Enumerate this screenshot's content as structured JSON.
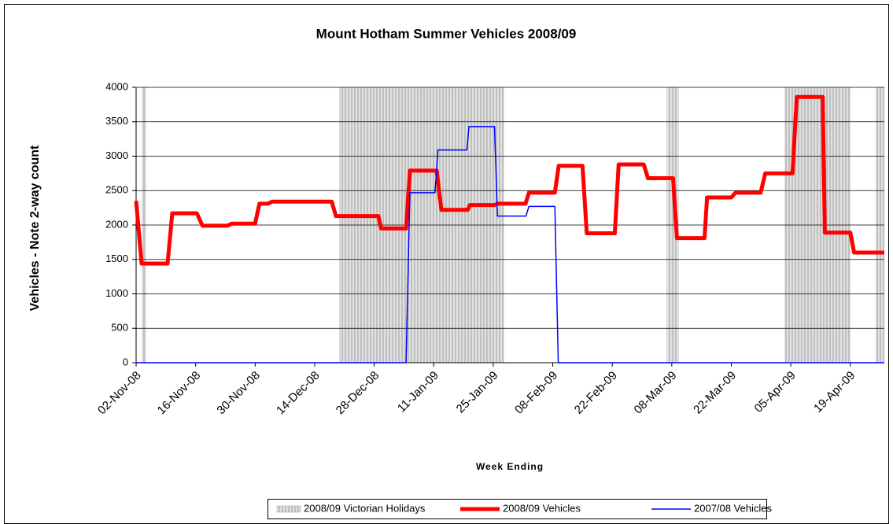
{
  "chart_data": {
    "type": "line",
    "title": "Mount Hotham Summer Vehicles 2008/09",
    "x_label": "Week Ending",
    "y_label": "Vehicles - Note 2-way count",
    "xlim": [
      0,
      176
    ],
    "xticks": [
      {
        "value": 0,
        "label": "02-Nov-08"
      },
      {
        "value": 14,
        "label": "16-Nov-08"
      },
      {
        "value": 28,
        "label": "30-Nov-08"
      },
      {
        "value": 42,
        "label": "14-Dec-08"
      },
      {
        "value": 56,
        "label": "28-Dec-08"
      },
      {
        "value": 70,
        "label": "11-Jan-09"
      },
      {
        "value": 84,
        "label": "25-Jan-09"
      },
      {
        "value": 98,
        "label": "08-Feb-09"
      },
      {
        "value": 112,
        "label": "22-Feb-09"
      },
      {
        "value": 126,
        "label": "08-Mar-09"
      },
      {
        "value": 140,
        "label": "22-Mar-09"
      },
      {
        "value": 154,
        "label": "05-Apr-09"
      },
      {
        "value": 168,
        "label": "19-Apr-09"
      }
    ],
    "ylim": [
      0,
      4000
    ],
    "yticks": [
      0,
      500,
      1000,
      1500,
      2000,
      2500,
      3000,
      3500,
      4000
    ],
    "grid": true,
    "holidays": {
      "name": "2008/09 Victorian Holidays",
      "color": "#c0c0c0",
      "bands": [
        [
          1.3,
          2.4
        ],
        [
          47.8,
          86.5
        ],
        [
          124.8,
          127.6
        ],
        [
          152.6,
          168
        ],
        [
          173.9,
          176
        ]
      ]
    },
    "series": [
      {
        "name": "2008/09 Vehicles",
        "color": "#ff0000",
        "width": 5,
        "x": [
          0,
          1.3,
          7.4,
          8.5,
          14.3,
          15.6,
          21.5,
          22.5,
          28,
          29,
          31,
          32,
          46,
          47,
          57,
          57.6,
          63.5,
          64.4,
          70.7,
          71.8,
          78,
          78.5,
          84.3,
          85,
          91.6,
          92.4,
          98.5,
          99.4,
          105,
          106,
          112.6,
          113.5,
          119.4,
          120.4,
          126.3,
          127.2,
          133.7,
          134.3,
          140,
          141,
          146.9,
          148,
          154.4,
          155.4,
          161.5,
          162,
          168,
          168.9,
          176
        ],
        "values": [
          2350,
          1440,
          1440,
          2170,
          2170,
          1990,
          1990,
          2020,
          2020,
          2310,
          2310,
          2340,
          2340,
          2130,
          2130,
          1950,
          1950,
          2790,
          2790,
          2220,
          2220,
          2290,
          2290,
          2310,
          2310,
          2470,
          2470,
          2860,
          2860,
          1880,
          1880,
          2880,
          2880,
          2680,
          2680,
          1810,
          1810,
          2400,
          2400,
          2470,
          2470,
          2750,
          2750,
          3860,
          3860,
          1890,
          1890,
          1600,
          1600
        ]
      },
      {
        "name": "2007/08 Vehicles",
        "color": "#0000ff",
        "width": 1.5,
        "x": [
          0,
          63.5,
          64.4,
          70.3,
          71,
          77.8,
          78.3,
          84.3,
          85,
          91.7,
          92.4,
          98.5,
          99.3,
          176
        ],
        "values": [
          0,
          0,
          2470,
          2470,
          3090,
          3090,
          3430,
          3430,
          2130,
          2130,
          2270,
          2270,
          0,
          0
        ]
      }
    ],
    "legend": "bottom"
  }
}
